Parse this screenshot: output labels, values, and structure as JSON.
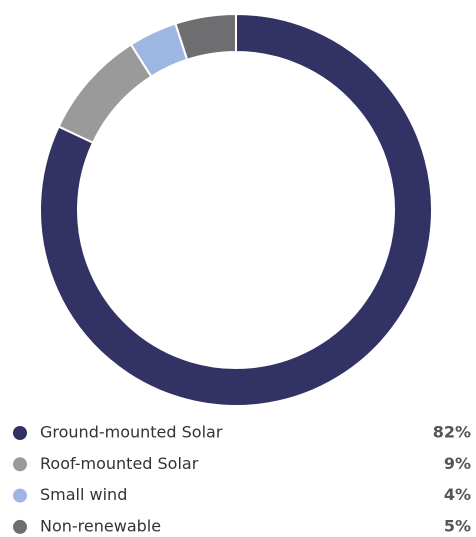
{
  "chart_data": {
    "type": "pie",
    "donut": true,
    "categories": [
      "Ground-mounted Solar",
      "Roof-mounted Solar",
      "Small wind",
      "Non-renewable"
    ],
    "values": [
      82,
      9,
      4,
      5
    ],
    "value_labels": [
      "82%",
      "9%",
      "4%",
      "5%"
    ],
    "colors": [
      "#323264",
      "#9a9a9a",
      "#9db7e2",
      "#6e6d6f"
    ]
  }
}
